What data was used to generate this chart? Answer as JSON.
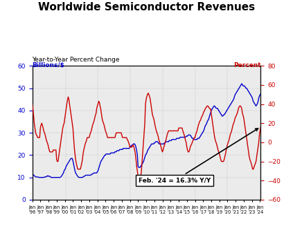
{
  "title": "Worldwide Semiconductor Revenues",
  "subtitle": "Year-to-Year Percent Change",
  "ylabel_left": "Billions/$",
  "ylabel_right": "Percent",
  "ylim_left": [
    0,
    60
  ],
  "ylim_right": [
    -60,
    80
  ],
  "yticks_left": [
    0,
    10,
    20,
    30,
    40,
    50,
    60
  ],
  "yticks_right": [
    -60,
    -40,
    -20,
    0,
    20,
    40,
    60,
    80
  ],
  "annotation": "Feb. '24 = 16.3% Y/Y",
  "blue_color": "#0000cc",
  "red_color": "#cc0000",
  "blue_raw": [
    12.0,
    11.5,
    11.0,
    10.8,
    10.5,
    10.3,
    10.2,
    10.2,
    10.2,
    10.2,
    10.0,
    10.0,
    10.0,
    10.0,
    10.0,
    10.0,
    10.0,
    10.0,
    10.2,
    10.2,
    10.2,
    10.5,
    10.5,
    10.8,
    10.5,
    10.5,
    10.5,
    10.2,
    10.0,
    10.0,
    10.0,
    10.0,
    10.0,
    10.0,
    10.0,
    10.0,
    10.0,
    10.0,
    10.0,
    10.0,
    10.0,
    10.0,
    10.2,
    10.5,
    11.0,
    11.5,
    12.0,
    13.0,
    13.5,
    14.0,
    15.0,
    15.5,
    16.0,
    16.5,
    17.0,
    17.5,
    18.0,
    18.5,
    18.5,
    18.5,
    17.5,
    16.0,
    14.5,
    13.0,
    12.0,
    11.5,
    11.0,
    10.5,
    10.2,
    10.0,
    10.0,
    10.0,
    10.0,
    10.0,
    10.0,
    10.2,
    10.5,
    10.5,
    10.8,
    11.0,
    11.0,
    11.0,
    11.0,
    11.0,
    11.0,
    11.0,
    11.0,
    11.2,
    11.5,
    11.5,
    11.8,
    12.0,
    12.0,
    12.0,
    12.0,
    12.0,
    12.5,
    13.0,
    14.0,
    15.0,
    16.0,
    17.0,
    17.5,
    18.0,
    18.5,
    19.0,
    19.5,
    20.0,
    20.0,
    20.5,
    20.5,
    20.5,
    20.5,
    20.5,
    20.5,
    20.5,
    21.0,
    21.0,
    21.0,
    21.0,
    21.0,
    21.0,
    21.5,
    21.5,
    21.5,
    22.0,
    22.0,
    22.0,
    22.0,
    22.5,
    22.5,
    22.5,
    22.5,
    22.5,
    23.0,
    23.0,
    23.0,
    23.0,
    23.0,
    23.0,
    23.0,
    23.0,
    23.0,
    23.0,
    23.5,
    24.0,
    24.0,
    24.5,
    24.5,
    25.0,
    25.0,
    25.0,
    24.5,
    23.5,
    22.0,
    20.0,
    15.0,
    14.5,
    14.5,
    14.5,
    15.0,
    15.5,
    16.0,
    16.5,
    17.0,
    18.0,
    19.0,
    20.0,
    20.5,
    21.0,
    22.0,
    22.5,
    23.0,
    23.5,
    24.0,
    24.5,
    25.0,
    25.0,
    25.0,
    25.0,
    25.5,
    25.5,
    26.0,
    26.0,
    26.0,
    26.0,
    25.5,
    25.0,
    25.0,
    25.0,
    25.0,
    25.0,
    25.0,
    25.0,
    25.0,
    25.5,
    25.5,
    26.0,
    26.0,
    26.0,
    26.0,
    26.0,
    26.5,
    26.5,
    26.5,
    26.5,
    27.0,
    27.0,
    27.0,
    27.0,
    27.0,
    27.0,
    27.0,
    27.5,
    27.5,
    27.5,
    27.5,
    27.5,
    28.0,
    28.0,
    28.0,
    28.0,
    28.0,
    28.0,
    28.0,
    28.0,
    28.0,
    28.5,
    28.5,
    28.5,
    29.0,
    29.0,
    29.0,
    29.0,
    28.5,
    28.0,
    27.5,
    27.5,
    27.0,
    27.0,
    27.0,
    27.0,
    27.0,
    27.0,
    27.5,
    27.5,
    27.5,
    28.0,
    28.5,
    29.0,
    29.5,
    30.0,
    30.5,
    31.0,
    32.0,
    33.0,
    33.5,
    34.0,
    35.0,
    35.5,
    36.0,
    37.0,
    38.0,
    39.0,
    40.0,
    40.5,
    41.0,
    41.5,
    42.0,
    42.0,
    41.5,
    41.0,
    41.0,
    41.0,
    40.5,
    40.0,
    39.5,
    39.0,
    38.5,
    38.0,
    37.5,
    37.5,
    38.0,
    38.0,
    38.5,
    39.0,
    39.5,
    40.0,
    40.5,
    41.0,
    41.5,
    42.0,
    42.5,
    43.0,
    43.5,
    44.0,
    44.5,
    45.0,
    46.0,
    47.0,
    47.5,
    48.0,
    48.5,
    49.0,
    49.5,
    50.0,
    50.5,
    51.0,
    51.5,
    52.0,
    51.5,
    51.0,
    51.0,
    51.0,
    50.5,
    50.0,
    50.0,
    49.5,
    49.0,
    48.5,
    48.0,
    47.5,
    47.0,
    46.5,
    46.0,
    45.0,
    44.0,
    43.5,
    43.0,
    42.5,
    42.0,
    42.5,
    43.0,
    44.0,
    45.5,
    46.5,
    47.0,
    47.5
  ],
  "red_raw": [
    40.0,
    35.0,
    28.0,
    20.0,
    15.0,
    10.0,
    8.0,
    7.0,
    5.0,
    5.0,
    5.0,
    5.0,
    15.0,
    18.0,
    20.0,
    18.0,
    15.0,
    12.0,
    10.0,
    8.0,
    5.0,
    2.0,
    0.0,
    -2.0,
    -5.0,
    -8.0,
    -10.0,
    -10.0,
    -10.0,
    -10.0,
    -10.0,
    -8.0,
    -8.0,
    -8.0,
    -8.0,
    -8.0,
    -18.0,
    -20.0,
    -20.0,
    -15.0,
    -10.0,
    -5.0,
    0.0,
    5.0,
    10.0,
    15.0,
    18.0,
    20.0,
    25.0,
    30.0,
    35.0,
    40.0,
    44.0,
    47.5,
    45.0,
    40.0,
    35.0,
    30.0,
    25.0,
    20.0,
    15.0,
    5.0,
    -5.0,
    -12.0,
    -18.0,
    -22.0,
    -25.0,
    -28.0,
    -28.0,
    -28.0,
    -28.0,
    -28.0,
    -25.0,
    -22.0,
    -18.0,
    -12.0,
    -8.0,
    -5.0,
    -2.0,
    0.0,
    2.0,
    5.0,
    5.0,
    5.0,
    5.0,
    8.0,
    10.0,
    12.0,
    15.0,
    18.0,
    20.0,
    22.0,
    25.0,
    28.0,
    30.0,
    35.0,
    38.0,
    40.0,
    43.0,
    42.0,
    38.0,
    35.0,
    30.0,
    25.0,
    22.0,
    20.0,
    18.0,
    15.0,
    12.0,
    10.0,
    8.0,
    5.0,
    5.0,
    5.0,
    5.0,
    5.0,
    5.0,
    5.0,
    5.0,
    5.0,
    5.0,
    5.0,
    5.0,
    8.0,
    10.0,
    10.0,
    10.0,
    10.0,
    10.0,
    10.0,
    10.0,
    10.0,
    8.0,
    5.0,
    5.0,
    5.0,
    5.0,
    5.0,
    5.0,
    5.0,
    3.0,
    2.0,
    0.0,
    -2.0,
    -5.0,
    -5.0,
    -5.0,
    -5.0,
    -3.0,
    -3.0,
    -5.0,
    -8.0,
    -12.0,
    -18.0,
    -25.0,
    -30.0,
    -35.0,
    -40.0,
    -40.0,
    -38.0,
    -35.0,
    -30.0,
    -20.0,
    -10.0,
    0.0,
    10.0,
    20.0,
    40.0,
    45.0,
    48.0,
    50.0,
    51.5,
    50.0,
    48.0,
    45.0,
    40.0,
    35.0,
    30.0,
    27.0,
    25.0,
    22.0,
    18.0,
    15.0,
    12.0,
    10.0,
    8.0,
    5.0,
    2.0,
    0.0,
    -2.0,
    -5.0,
    -8.0,
    -10.0,
    -8.0,
    -5.0,
    -3.0,
    0.0,
    2.0,
    5.0,
    8.0,
    10.0,
    12.0,
    12.0,
    12.0,
    12.0,
    12.0,
    12.0,
    12.0,
    12.0,
    12.0,
    12.0,
    12.0,
    12.0,
    12.0,
    12.0,
    12.0,
    15.0,
    15.0,
    15.0,
    15.0,
    15.0,
    15.0,
    12.0,
    10.0,
    8.0,
    5.0,
    2.0,
    0.0,
    -5.0,
    -8.0,
    -10.0,
    -10.0,
    -8.0,
    -5.0,
    -3.0,
    -2.0,
    0.0,
    2.0,
    3.0,
    5.0,
    5.0,
    8.0,
    10.0,
    12.0,
    15.0,
    18.0,
    20.0,
    22.0,
    23.0,
    25.0,
    27.0,
    28.0,
    30.0,
    32.0,
    33.0,
    35.0,
    36.0,
    37.0,
    38.0,
    38.0,
    37.0,
    36.0,
    35.0,
    35.0,
    30.0,
    25.0,
    20.0,
    15.0,
    10.0,
    5.0,
    2.0,
    0.0,
    -2.0,
    -5.0,
    -8.0,
    -10.0,
    -12.0,
    -15.0,
    -18.0,
    -20.0,
    -20.0,
    -20.0,
    -20.0,
    -18.0,
    -15.0,
    -12.0,
    -8.0,
    -5.0,
    -2.0,
    0.0,
    2.0,
    5.0,
    8.0,
    10.0,
    12.0,
    15.0,
    18.0,
    20.0,
    22.0,
    25.0,
    27.0,
    28.0,
    30.0,
    32.0,
    35.0,
    37.0,
    38.0,
    38.0,
    37.0,
    35.0,
    30.0,
    28.0,
    25.0,
    20.0,
    15.0,
    10.0,
    5.0,
    0.0,
    -5.0,
    -10.0,
    -15.0,
    -18.0,
    -20.0,
    -22.0,
    -25.0,
    -28.0,
    -28.0,
    -26.0,
    -24.0,
    -22.0,
    -20.0,
    -15.0,
    -10.0,
    -5.0,
    0.0,
    8.0,
    12.0,
    16.3
  ]
}
